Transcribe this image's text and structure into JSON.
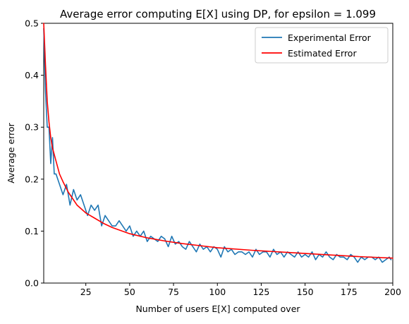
{
  "chart_data": {
    "type": "line",
    "title": "Average error computing E[X] using DP, for epsilon = 1.099",
    "xlabel": "Number of users E[X] computed over",
    "ylabel": "Average error",
    "xlim": [
      1,
      200
    ],
    "ylim": [
      0,
      0.5
    ],
    "xticks": [
      25,
      50,
      75,
      100,
      125,
      150,
      175,
      200
    ],
    "xtick_labels": [
      "25",
      "50",
      "75",
      "100",
      "125",
      "150",
      "175",
      "200"
    ],
    "yticks": [
      0.0,
      0.1,
      0.2,
      0.3,
      0.4,
      0.5
    ],
    "ytick_labels": [
      "0.0",
      "0.1",
      "0.2",
      "0.3",
      "0.4",
      "0.5"
    ],
    "grid": false,
    "legend_position": "top-right",
    "series": [
      {
        "name": "Experimental Error",
        "color": "#1f77b4",
        "x": [
          1,
          2,
          3,
          4,
          5,
          6,
          7,
          8,
          10,
          12,
          14,
          16,
          18,
          20,
          22,
          24,
          26,
          28,
          30,
          32,
          34,
          36,
          38,
          40,
          42,
          44,
          46,
          48,
          50,
          52,
          54,
          56,
          58,
          60,
          62,
          64,
          66,
          68,
          70,
          72,
          74,
          76,
          78,
          80,
          82,
          84,
          86,
          88,
          90,
          92,
          94,
          96,
          98,
          100,
          102,
          104,
          106,
          108,
          110,
          112,
          114,
          116,
          118,
          120,
          122,
          124,
          126,
          128,
          130,
          132,
          134,
          136,
          138,
          140,
          142,
          144,
          146,
          148,
          150,
          152,
          154,
          156,
          158,
          160,
          162,
          164,
          166,
          168,
          170,
          172,
          174,
          176,
          178,
          180,
          182,
          184,
          186,
          188,
          190,
          192,
          194,
          196,
          198,
          199
        ],
        "values": [
          0.49,
          0.37,
          0.3,
          0.3,
          0.23,
          0.28,
          0.21,
          0.21,
          0.19,
          0.17,
          0.19,
          0.15,
          0.18,
          0.16,
          0.17,
          0.15,
          0.13,
          0.15,
          0.14,
          0.15,
          0.11,
          0.13,
          0.12,
          0.11,
          0.11,
          0.12,
          0.11,
          0.1,
          0.11,
          0.09,
          0.1,
          0.09,
          0.1,
          0.08,
          0.09,
          0.085,
          0.08,
          0.09,
          0.085,
          0.07,
          0.09,
          0.075,
          0.08,
          0.07,
          0.065,
          0.08,
          0.07,
          0.06,
          0.075,
          0.065,
          0.07,
          0.06,
          0.07,
          0.065,
          0.05,
          0.07,
          0.06,
          0.065,
          0.055,
          0.06,
          0.06,
          0.055,
          0.06,
          0.05,
          0.065,
          0.055,
          0.06,
          0.06,
          0.05,
          0.065,
          0.055,
          0.06,
          0.05,
          0.06,
          0.055,
          0.05,
          0.06,
          0.05,
          0.055,
          0.05,
          0.06,
          0.045,
          0.055,
          0.05,
          0.06,
          0.05,
          0.045,
          0.055,
          0.05,
          0.05,
          0.045,
          0.055,
          0.05,
          0.04,
          0.05,
          0.045,
          0.05,
          0.05,
          0.045,
          0.05,
          0.04,
          0.045,
          0.05,
          0.045
        ]
      },
      {
        "name": "Estimated Error",
        "color": "#ff0000",
        "x": [
          1,
          2,
          3,
          4,
          5,
          6,
          8,
          10,
          12,
          15,
          18,
          20,
          25,
          30,
          35,
          40,
          50,
          60,
          70,
          80,
          90,
          100,
          120,
          140,
          160,
          180,
          200
        ],
        "values": [
          0.5,
          0.42,
          0.35,
          0.31,
          0.28,
          0.26,
          0.235,
          0.21,
          0.195,
          0.175,
          0.16,
          0.15,
          0.135,
          0.125,
          0.115,
          0.107,
          0.095,
          0.087,
          0.081,
          0.076,
          0.072,
          0.068,
          0.063,
          0.059,
          0.055,
          0.051,
          0.048
        ]
      }
    ]
  }
}
